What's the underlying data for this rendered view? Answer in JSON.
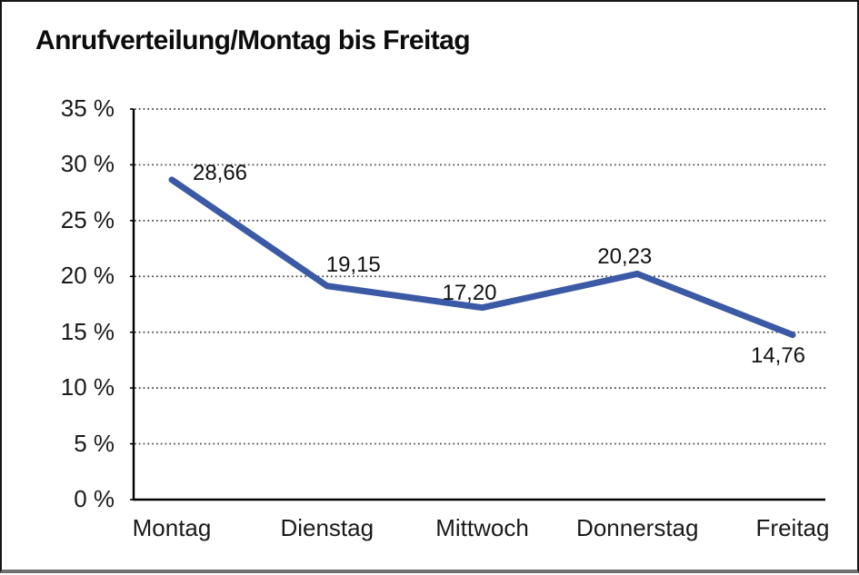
{
  "frame": {
    "background": "#ffffff",
    "border_color": "#161616"
  },
  "header": {
    "title": "Anrufverteilung/Montag bis Freitag"
  },
  "chart_data": {
    "type": "line",
    "title": "Anrufverteilung/Montag bis Freitag",
    "categories": [
      "Montag",
      "Dienstag",
      "Mittwoch",
      "Donnerstag",
      "Freitag"
    ],
    "series": [
      {
        "name": "Anrufverteilung",
        "values": [
          28.66,
          19.15,
          17.2,
          20.23,
          14.76
        ]
      }
    ],
    "data_labels": [
      "28,66",
      "19,15",
      "17,20",
      "20,23",
      "14,76"
    ],
    "y_axis": {
      "tick_values": [
        0,
        5,
        10,
        15,
        20,
        25,
        30,
        35
      ],
      "tick_labels": [
        "0 %",
        "5 %",
        "10 %",
        "15 %",
        "20 %",
        "25 %",
        "30 %",
        "35 %"
      ],
      "min": 0,
      "max": 35
    },
    "xlabel": "",
    "ylabel": "",
    "ylim": [
      0,
      35
    ],
    "grid": {
      "horizontal": "dotted",
      "vertical": "none"
    },
    "legend_position": "none",
    "colors": {
      "line": "#3b59a5",
      "axis": "#000000",
      "gridline": "#3f3f3f",
      "text": "#1a1a1a"
    }
  }
}
